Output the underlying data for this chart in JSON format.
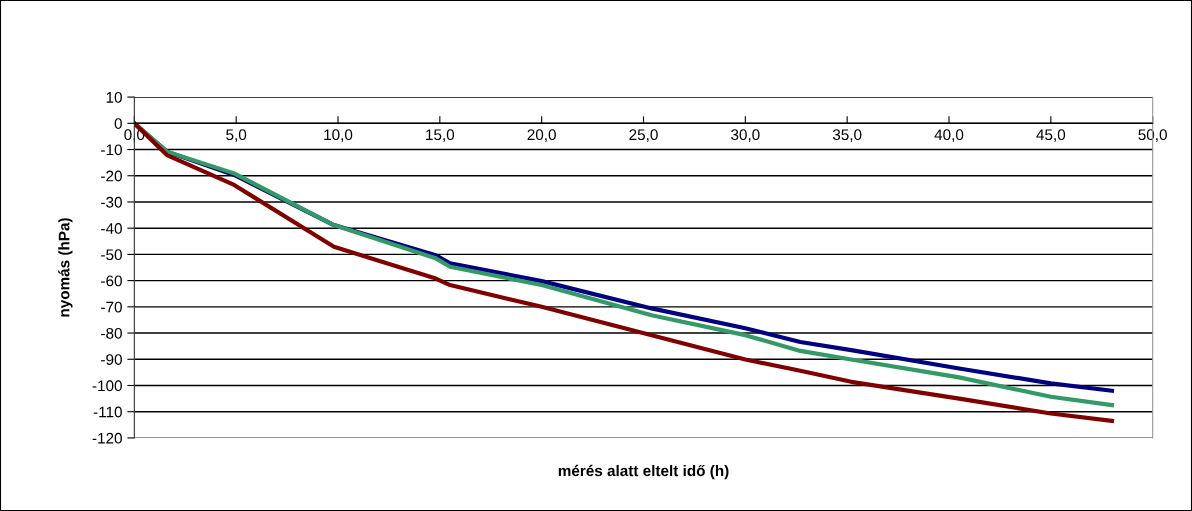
{
  "chart_data": {
    "type": "line",
    "xlabel": "mérés alatt eltelt idő (h)",
    "ylabel": "nyomás (hPa)",
    "xlim": [
      0,
      50
    ],
    "ylim": [
      -120,
      10
    ],
    "xticks": [
      {
        "value": 0,
        "label": "0,0"
      },
      {
        "value": 5,
        "label": "5,0"
      },
      {
        "value": 10,
        "label": "10,0"
      },
      {
        "value": 15,
        "label": "15,0"
      },
      {
        "value": 20,
        "label": "20,0"
      },
      {
        "value": 25,
        "label": "25,0"
      },
      {
        "value": 30,
        "label": "30,0"
      },
      {
        "value": 35,
        "label": "35,0"
      },
      {
        "value": 40,
        "label": "40,0"
      },
      {
        "value": 45,
        "label": "45,0"
      },
      {
        "value": 50,
        "label": "50,0"
      }
    ],
    "yticks": [
      -120,
      -110,
      -100,
      -90,
      -80,
      -70,
      -60,
      -50,
      -40,
      -30,
      -20,
      -10,
      0,
      10
    ],
    "grid": "y",
    "legend": false,
    "marker": "none",
    "line_style": "solid",
    "series": [
      {
        "color": "#000080",
        "x": [
          0,
          1.6,
          4.9,
          9.8,
          14.8,
          15.5,
          20,
          25.4,
          30,
          32.7,
          35.2,
          40.5,
          45,
          48
        ],
        "values": [
          0,
          -10.8,
          -19.7,
          -38.8,
          -50.3,
          -53.4,
          -60.2,
          -70.6,
          -78.2,
          -83.4,
          -86.5,
          -93.5,
          -99.2,
          -102
        ]
      },
      {
        "color": "#339966",
        "x": [
          0,
          1.6,
          4.9,
          9.8,
          14.8,
          15.5,
          20,
          25.4,
          30,
          32.7,
          35.2,
          40.5,
          45,
          48
        ],
        "values": [
          0,
          -10.8,
          -19.1,
          -38.8,
          -51.5,
          -54.7,
          -61.7,
          -73.2,
          -80.8,
          -86.8,
          -90.1,
          -96.9,
          -104.3,
          -107.5
        ]
      },
      {
        "color": "#800000",
        "x": [
          0,
          1.6,
          4.9,
          9.8,
          14.8,
          15.5,
          20,
          25.4,
          30,
          32.7,
          35.2,
          40.5,
          45,
          48
        ],
        "values": [
          0,
          -12.1,
          -23.5,
          -47.1,
          -59.2,
          -61.7,
          -70,
          -80.8,
          -90.1,
          -94.4,
          -98.6,
          -105,
          -110.7,
          -113.5
        ]
      }
    ]
  }
}
